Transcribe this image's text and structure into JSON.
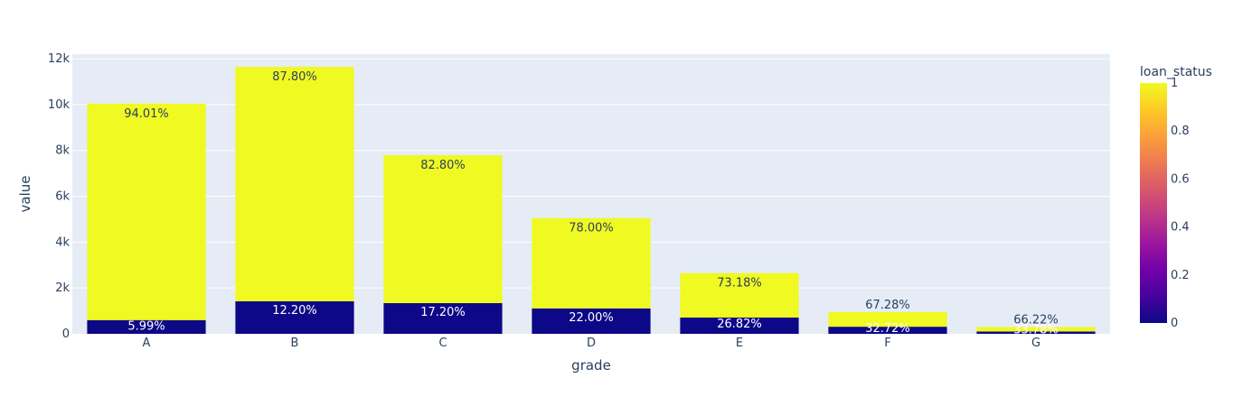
{
  "chart_data": {
    "type": "bar",
    "barmode": "stack",
    "categories": [
      "A",
      "B",
      "C",
      "D",
      "E",
      "F",
      "G"
    ],
    "xlabel": "grade",
    "ylabel": "value",
    "ylim": [
      0,
      12200
    ],
    "yticks": [
      0,
      2000,
      4000,
      6000,
      8000,
      10000,
      12000
    ],
    "ytick_labels": [
      "0",
      "2k",
      "4k",
      "6k",
      "8k",
      "10k",
      "12k"
    ],
    "grid": true,
    "series": [
      {
        "loan_status": 0,
        "color": "#0d0887",
        "values": [
          600,
          1420,
          1340,
          1110,
          710,
          310,
          100
        ],
        "labels": [
          "5.99%",
          "12.20%",
          "17.20%",
          "22.00%",
          "26.82%",
          "32.72%",
          "33.78%"
        ]
      },
      {
        "loan_status": 1,
        "color": "#f0f921",
        "values": [
          9440,
          10230,
          6450,
          3940,
          1940,
          640,
          195
        ],
        "labels": [
          "94.01%",
          "87.80%",
          "82.80%",
          "78.00%",
          "73.18%",
          "67.28%",
          "66.22%"
        ]
      }
    ],
    "colorbar": {
      "title": "loan_status",
      "ticks": [
        0,
        0.2,
        0.4,
        0.6,
        0.8,
        1
      ],
      "tick_labels": [
        "0",
        "0.2",
        "0.4",
        "0.6",
        "0.8",
        "1"
      ],
      "colors": [
        "#0d0887",
        "#46039f",
        "#7201a8",
        "#9c179e",
        "#bd3786",
        "#d8576b",
        "#ed7953",
        "#fb9f3a",
        "#fdca26",
        "#f0f921"
      ]
    }
  }
}
